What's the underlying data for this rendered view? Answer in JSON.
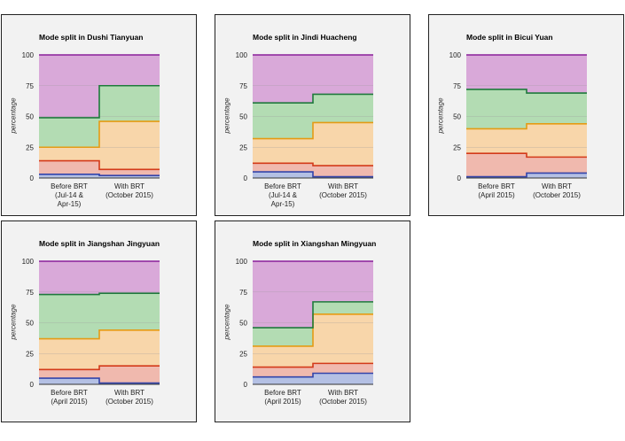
{
  "chart_data": [
    {
      "type": "area",
      "title": "Mode split in Dushi Tianyuan",
      "ylabel": "percentage",
      "ylim": [
        0,
        100
      ],
      "yticks": [
        0,
        25,
        50,
        75,
        100
      ],
      "categories": [
        "Before BRT\n(Jul-14 &\nApr-15)",
        "With BRT\n(October 2015)"
      ],
      "cumulative": [
        [
          3,
          14,
          25,
          49,
          100
        ],
        [
          2,
          7,
          46,
          75,
          100
        ]
      ],
      "colors": {
        "fills": [
          "#b4c0e4",
          "#f0b9ae",
          "#f8d6aa",
          "#b3dcb3",
          "#d9a9d9"
        ],
        "lines": [
          "#3344aa",
          "#d33a1a",
          "#e49b14",
          "#1f7a3c",
          "#8a1f9a"
        ]
      }
    },
    {
      "type": "area",
      "title": "Mode split in Jindi Huacheng",
      "ylabel": "percentage",
      "ylim": [
        0,
        100
      ],
      "yticks": [
        0,
        25,
        50,
        75,
        100
      ],
      "categories": [
        "Before BRT\n(Jul-14 &\nApr-15)",
        "With BRT\n(October 2015)"
      ],
      "cumulative": [
        [
          5,
          12,
          32,
          61,
          100
        ],
        [
          1,
          10,
          45,
          68,
          100
        ]
      ],
      "colors": {
        "fills": [
          "#b4c0e4",
          "#f0b9ae",
          "#f8d6aa",
          "#b3dcb3",
          "#d9a9d9"
        ],
        "lines": [
          "#3344aa",
          "#d33a1a",
          "#e49b14",
          "#1f7a3c",
          "#8a1f9a"
        ]
      }
    },
    {
      "type": "area",
      "title": "Mode split in Bicui Yuan",
      "ylabel": "percentage",
      "ylim": [
        0,
        100
      ],
      "yticks": [
        0,
        25,
        50,
        75,
        100
      ],
      "categories": [
        "Before BRT\n(April 2015)",
        "With BRT\n(October 2015)"
      ],
      "cumulative": [
        [
          1,
          20,
          40,
          72,
          100
        ],
        [
          4,
          17,
          44,
          69,
          100
        ]
      ],
      "colors": {
        "fills": [
          "#b4c0e4",
          "#f0b9ae",
          "#f8d6aa",
          "#b3dcb3",
          "#d9a9d9"
        ],
        "lines": [
          "#3344aa",
          "#d33a1a",
          "#e49b14",
          "#1f7a3c",
          "#8a1f9a"
        ]
      }
    },
    {
      "type": "area",
      "title": "Mode split in Jiangshan Jingyuan",
      "ylabel": "percentage",
      "ylim": [
        0,
        100
      ],
      "yticks": [
        0,
        25,
        50,
        75,
        100
      ],
      "categories": [
        "Before BRT\n(April 2015)",
        "With BRT\n(October 2015)"
      ],
      "cumulative": [
        [
          5,
          12,
          37,
          73,
          100
        ],
        [
          1,
          15,
          44,
          74,
          100
        ]
      ],
      "colors": {
        "fills": [
          "#b4c0e4",
          "#f0b9ae",
          "#f8d6aa",
          "#b3dcb3",
          "#d9a9d9"
        ],
        "lines": [
          "#3344aa",
          "#d33a1a",
          "#e49b14",
          "#1f7a3c",
          "#8a1f9a"
        ]
      }
    },
    {
      "type": "area",
      "title": "Mode split in Xiangshan Mingyuan",
      "ylabel": "percentage",
      "ylim": [
        0,
        100
      ],
      "yticks": [
        0,
        25,
        50,
        75,
        100
      ],
      "categories": [
        "Before BRT\n(April 2015)",
        "With BRT\n(October 2015)"
      ],
      "cumulative": [
        [
          6,
          14,
          31,
          46,
          100
        ],
        [
          9,
          17,
          57,
          67,
          100
        ]
      ],
      "colors": {
        "fills": [
          "#b4c0e4",
          "#f0b9ae",
          "#f8d6aa",
          "#b3dcb3",
          "#d9a9d9"
        ],
        "lines": [
          "#3344aa",
          "#d33a1a",
          "#e49b14",
          "#1f7a3c",
          "#8a1f9a"
        ]
      }
    }
  ]
}
